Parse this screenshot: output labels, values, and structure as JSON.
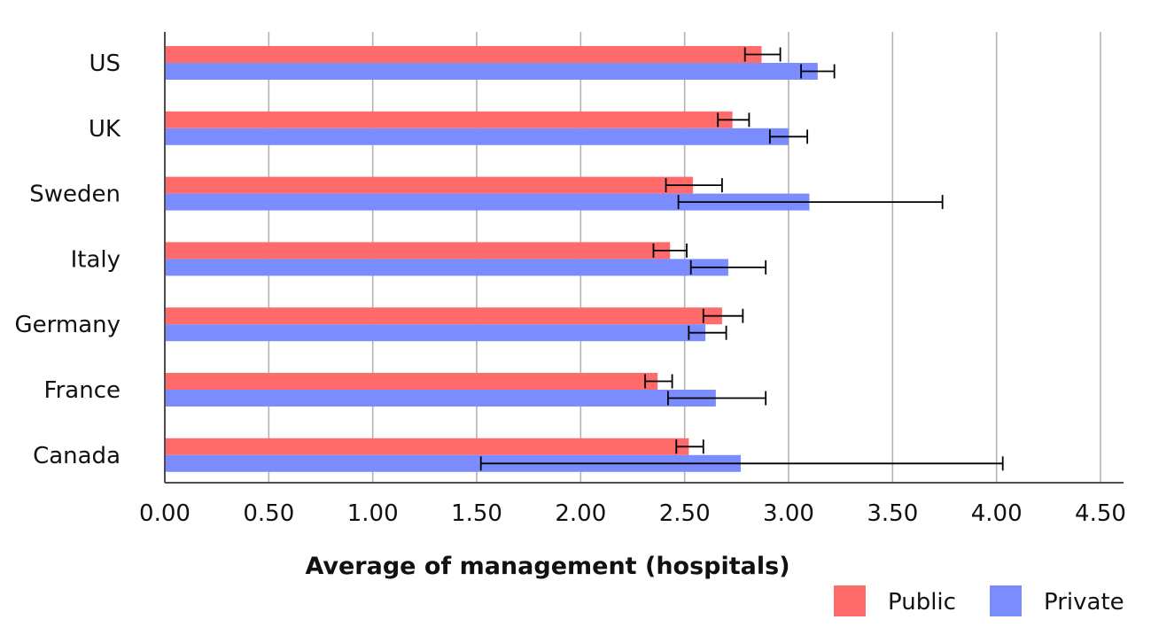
{
  "chart_data": {
    "type": "bar",
    "orientation": "horizontal",
    "categories": [
      "US",
      "UK",
      "Sweden",
      "Italy",
      "Germany",
      "France",
      "Canada"
    ],
    "series": [
      {
        "name": "Public",
        "color": "#ff6b6b",
        "values": [
          2.87,
          2.73,
          2.54,
          2.43,
          2.68,
          2.37,
          2.52
        ],
        "error_low": [
          2.79,
          2.66,
          2.41,
          2.35,
          2.59,
          2.31,
          2.46
        ],
        "error_high": [
          2.96,
          2.81,
          2.68,
          2.51,
          2.78,
          2.44,
          2.59
        ]
      },
      {
        "name": "Private",
        "color": "#7b8cff",
        "values": [
          3.14,
          3.0,
          3.1,
          2.71,
          2.6,
          2.65,
          2.77
        ],
        "error_low": [
          3.06,
          2.91,
          2.47,
          2.53,
          2.52,
          2.42,
          1.52
        ],
        "error_high": [
          3.22,
          3.09,
          3.74,
          2.89,
          2.7,
          2.89,
          4.03
        ]
      }
    ],
    "xlabel": "Average of management (hospitals)",
    "ylabel": "",
    "xlim": [
      0,
      4.5
    ],
    "xticks": [
      "0.00",
      "0.50",
      "1.00",
      "1.50",
      "2.00",
      "2.50",
      "3.00",
      "3.50",
      "4.00",
      "4.50"
    ],
    "grid": "vertical",
    "legend_position": "bottom-right"
  }
}
